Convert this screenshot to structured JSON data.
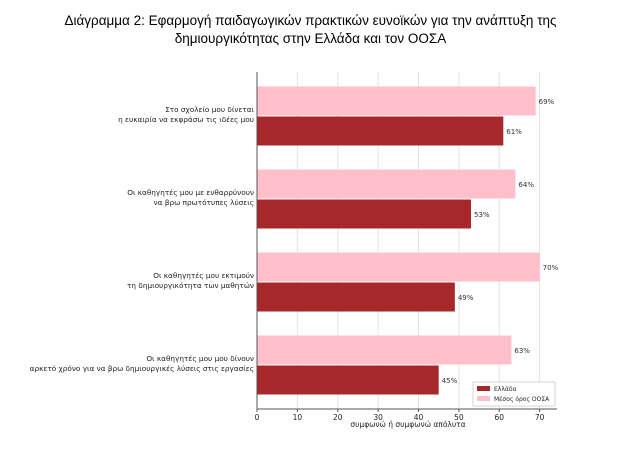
{
  "title_lines": [
    "Διάγραμμα 2: Εφαρμογή παιδαγωγικών πρακτικών ευνοϊκών για την ανάπτυξη της",
    "δημιουργικότητας στην Ελλάδα και τον ΟΟΣΑ"
  ],
  "chart_data": {
    "type": "bar",
    "orientation": "horizontal",
    "title": "Διάγραμμα 2: Εφαρμογή παιδαγωγικών πρακτικών ευνοϊκών για την ανάπτυξη της δημιουργικότητας στην Ελλάδα και τον ΟΟΣΑ",
    "xlabel": "συμφωνώ ή συμφωνώ απόλυτα",
    "ylabel": "",
    "xlim": [
      0,
      70
    ],
    "xticks": [
      0,
      10,
      20,
      30,
      40,
      50,
      60,
      70
    ],
    "grid": true,
    "legend_position": "bottom-right",
    "categories": [
      [
        "Στο σχολείο μου δίνεται",
        "η ευκαιρία να εκφράσω τις ιδέες μου"
      ],
      [
        "Οι καθηγητές μου με ενθαρρύνουν",
        "να βρω πρωτότυπες λύσεις"
      ],
      [
        "Οι καθηγητές μου εκτιμούν",
        "τη δημιουργικότητα των μαθητών"
      ],
      [
        "Οι καθηγητές μου μου δίνουν",
        "αρκετό χρόνο για να βρω δημιουργικές λύσεις στις εργασίες"
      ]
    ],
    "series": [
      {
        "name": "Ελλάδα",
        "color": "#a6282b",
        "values": [
          61,
          53,
          49,
          45
        ],
        "labels": [
          "61%",
          "53%",
          "49%",
          "45%"
        ]
      },
      {
        "name": "Μέσος όρος ΟΟΣΑ",
        "color": "#ffc0cb",
        "values": [
          69,
          64,
          70,
          63
        ],
        "labels": [
          "69%",
          "64%",
          "70%",
          "63%"
        ]
      }
    ]
  }
}
